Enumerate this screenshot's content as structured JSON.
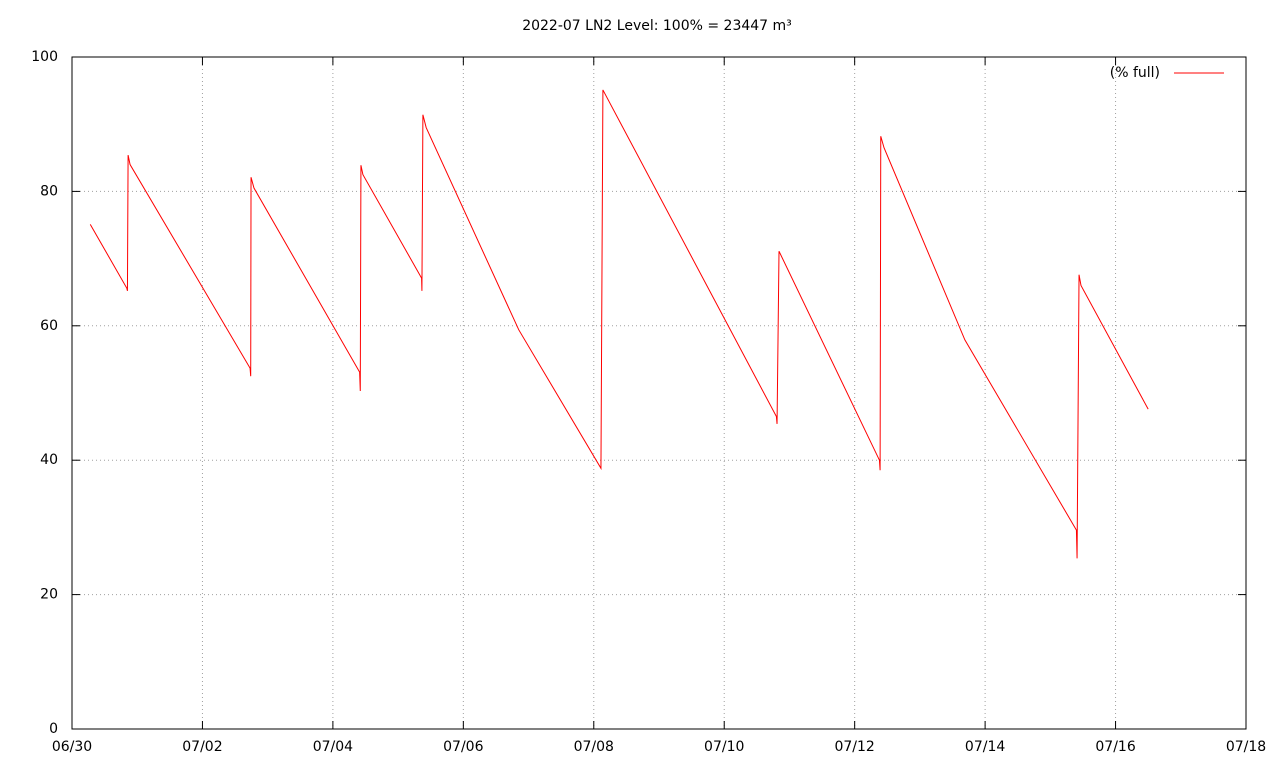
{
  "chart_data": {
    "type": "line",
    "title": "2022-07 LN2 Level: 100% = 23447 m³",
    "x": [
      0.28,
      0.84,
      0.85,
      0.86,
      0.89,
      2.73,
      2.74,
      2.745,
      2.79,
      4.41,
      4.42,
      4.43,
      4.46,
      5.36,
      5.365,
      5.38,
      5.43,
      6.85,
      8.11,
      8.14,
      10.8,
      10.81,
      10.84,
      12.38,
      12.39,
      12.4,
      12.45,
      13.69,
      15.4,
      15.41,
      15.44,
      15.47,
      16.5
    ],
    "series": [
      {
        "name": "(% full)",
        "color": "#ff0000",
        "values": [
          75.1,
          65.6,
          65.2,
          85.4,
          84.0,
          53.7,
          52.5,
          82.1,
          80.5,
          53.1,
          50.3,
          83.9,
          82.5,
          67.1,
          65.2,
          91.4,
          89.5,
          59.4,
          38.8,
          95.1,
          46.5,
          45.4,
          71.1,
          40.0,
          38.5,
          88.2,
          86.5,
          57.9,
          29.6,
          25.4,
          67.6,
          66.0,
          47.6
        ]
      }
    ],
    "xlim": [
      0,
      18
    ],
    "xticks": [
      {
        "value": 0,
        "label": "06/30"
      },
      {
        "value": 2,
        "label": "07/02"
      },
      {
        "value": 4,
        "label": "07/04"
      },
      {
        "value": 6,
        "label": "07/06"
      },
      {
        "value": 8,
        "label": "07/08"
      },
      {
        "value": 10,
        "label": "07/10"
      },
      {
        "value": 12,
        "label": "07/12"
      },
      {
        "value": 14,
        "label": "07/14"
      },
      {
        "value": 16,
        "label": "07/16"
      },
      {
        "value": 18,
        "label": "07/18"
      }
    ],
    "ylim": [
      0,
      100
    ],
    "yticks": [
      0,
      20,
      40,
      60,
      80,
      100
    ],
    "grid": true,
    "legend": "top-right"
  }
}
